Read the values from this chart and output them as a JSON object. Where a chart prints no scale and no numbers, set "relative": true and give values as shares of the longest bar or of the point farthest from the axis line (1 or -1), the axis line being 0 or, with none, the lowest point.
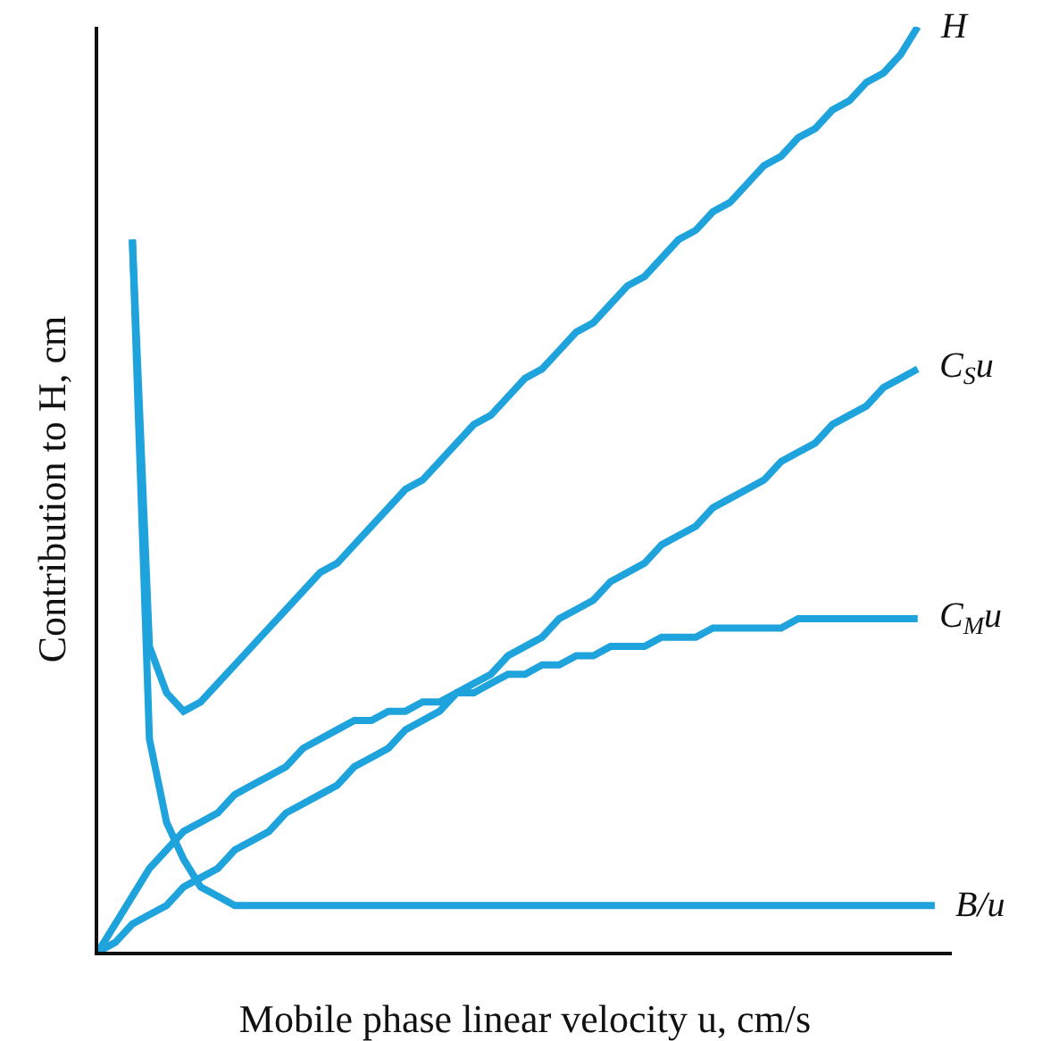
{
  "chart_data": {
    "type": "line",
    "relative": true,
    "xlabel": "Mobile phase linear velocity u, cm/s",
    "ylabel": "Contribution to H, cm",
    "legend": false,
    "grid": false,
    "marker": "none",
    "line_style": "solid",
    "categories": [
      null,
      null,
      null,
      null,
      null,
      null,
      null,
      null,
      null,
      null,
      null,
      null,
      null,
      null,
      null,
      null,
      null,
      null,
      null,
      null,
      null,
      null,
      null,
      null,
      null,
      null,
      null,
      null,
      null,
      null,
      null,
      null,
      null,
      null,
      null,
      null,
      null,
      null,
      null,
      null,
      null,
      null,
      null,
      null,
      null,
      null,
      null,
      null,
      null,
      null
    ],
    "series": [
      {
        "name": "H",
        "color": "#1fa3dc",
        "values": [
          null,
          null,
          0.77,
          0.33,
          0.28,
          0.26,
          0.27,
          0.29,
          0.31,
          0.33,
          0.35,
          0.37,
          0.39,
          0.41,
          0.42,
          0.44,
          0.46,
          0.48,
          0.5,
          0.51,
          0.53,
          0.55,
          0.57,
          0.58,
          0.6,
          0.62,
          0.63,
          0.65,
          0.67,
          0.68,
          0.7,
          0.72,
          0.73,
          0.75,
          0.77,
          0.78,
          0.8,
          0.81,
          0.83,
          0.85,
          0.86,
          0.88,
          0.89,
          0.91,
          0.92,
          0.94,
          0.95,
          0.97,
          1.0,
          null
        ]
      },
      {
        "name": "C$_{S}$u",
        "color": "#1fa3dc",
        "values": [
          0,
          0.01,
          0.03,
          0.04,
          0.05,
          0.07,
          0.08,
          0.09,
          0.11,
          0.12,
          0.13,
          0.15,
          0.16,
          0.17,
          0.18,
          0.2,
          0.21,
          0.22,
          0.24,
          0.25,
          0.26,
          0.28,
          0.29,
          0.3,
          0.32,
          0.33,
          0.34,
          0.36,
          0.37,
          0.38,
          0.4,
          0.41,
          0.42,
          0.44,
          0.45,
          0.46,
          0.48,
          0.49,
          0.5,
          0.51,
          0.53,
          0.54,
          0.55,
          0.57,
          0.58,
          0.59,
          0.61,
          0.62,
          0.63,
          null
        ]
      },
      {
        "name": "C$_{M}$u",
        "color": "#1fa3dc",
        "values": [
          0,
          0.03,
          0.06,
          0.09,
          0.11,
          0.13,
          0.14,
          0.15,
          0.17,
          0.18,
          0.19,
          0.2,
          0.22,
          0.23,
          0.24,
          0.25,
          0.25,
          0.26,
          0.26,
          0.27,
          0.27,
          0.28,
          0.28,
          0.29,
          0.3,
          0.3,
          0.31,
          0.31,
          0.32,
          0.32,
          0.33,
          0.33,
          0.33,
          0.34,
          0.34,
          0.34,
          0.35,
          0.35,
          0.35,
          0.35,
          0.35,
          0.36,
          0.36,
          0.36,
          0.36,
          0.36,
          0.36,
          0.36,
          0.36,
          null
        ]
      },
      {
        "name": "B/u",
        "color": "#1fa3dc",
        "values": [
          null,
          null,
          0.77,
          0.23,
          0.14,
          0.1,
          0.07,
          0.06,
          0.05,
          0.05,
          0.05,
          0.05,
          0.05,
          0.05,
          0.05,
          0.05,
          0.05,
          0.05,
          0.05,
          0.05,
          0.05,
          0.05,
          0.05,
          0.05,
          0.05,
          0.05,
          0.05,
          0.05,
          0.05,
          0.05,
          0.05,
          0.05,
          0.05,
          0.05,
          0.05,
          0.05,
          0.05,
          0.05,
          0.05,
          0.05,
          0.05,
          0.05,
          0.05,
          0.05,
          0.05,
          0.05,
          0.05,
          0.05,
          0.05,
          0.05
        ]
      }
    ]
  }
}
